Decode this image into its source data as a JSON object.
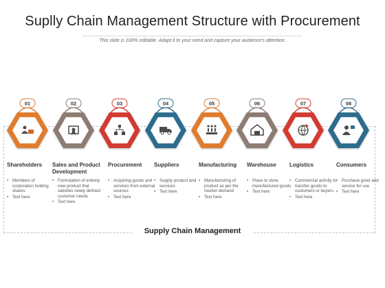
{
  "title": "Suplly Chain Management Structure with Procurement",
  "subtitle": "This slide is 100% editable. Adapt it to your need and capture your audience's attention.",
  "footer": "Supply Chain Management",
  "steps": [
    {
      "num": "01",
      "title": "Shareholders",
      "color": "#e07b2e",
      "icon": "shareholder-icon",
      "bullets": [
        "Members of corporation holding shares",
        "Text here"
      ]
    },
    {
      "num": "02",
      "title": "Sales and Product Development",
      "color": "#8d7b72",
      "icon": "certificate-icon",
      "bullets": [
        "Formulation of entirely new product that satisfies newly defined customer needs",
        "Text here"
      ]
    },
    {
      "num": "03",
      "title": "Procurement",
      "color": "#d23b30",
      "icon": "procurement-network-icon",
      "bullets": [
        "Acquiring goods and services from external sources",
        "Text here"
      ]
    },
    {
      "num": "04",
      "title": "Suppliers",
      "color": "#2f6c8d",
      "icon": "delivery-truck-icon",
      "bullets": [
        "Supply product and services",
        "Text here"
      ]
    },
    {
      "num": "05",
      "title": "Manufacturing",
      "color": "#e07b2e",
      "icon": "factory-icon",
      "bullets": [
        "Manufacturing of product as per the market demand",
        "Text here"
      ]
    },
    {
      "num": "06",
      "title": "Warehouse",
      "color": "#8d7b72",
      "icon": "warehouse-icon",
      "bullets": [
        "Place to store manufactured goods",
        "Text here"
      ]
    },
    {
      "num": "07",
      "title": "Logistics",
      "color": "#d23b30",
      "icon": "globe-logistics-icon",
      "bullets": [
        "Commercial activity to transfer goods to customers or buyers",
        "Text here"
      ]
    },
    {
      "num": "08",
      "title": "Consumers",
      "color": "#2f6c8d",
      "icon": "consumer-icon",
      "bullets": [
        "Purchase good and service for use",
        "Text here"
      ]
    }
  ]
}
